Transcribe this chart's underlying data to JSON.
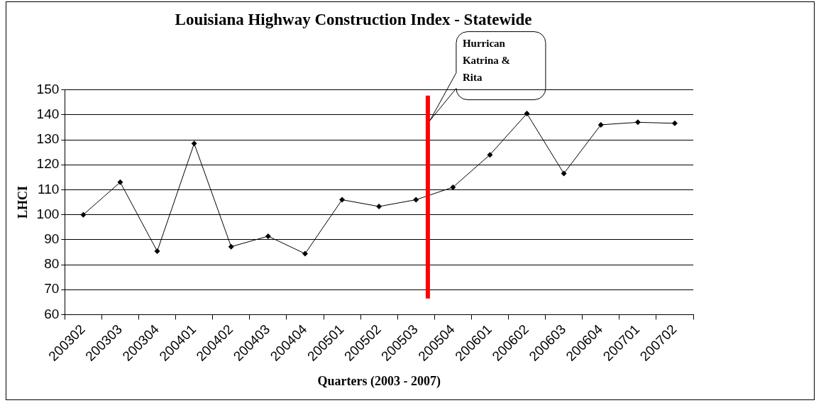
{
  "chart_data": {
    "type": "line",
    "title": "Louisiana Highway Construction Index - Statewide",
    "xlabel": "Quarters (2003 - 2007)",
    "ylabel": "LHCI",
    "categories": [
      "200302",
      "200303",
      "200304",
      "200401",
      "200402",
      "200403",
      "200404",
      "200501",
      "200502",
      "200503",
      "200504",
      "200601",
      "200602",
      "200603",
      "200604",
      "200701",
      "200702"
    ],
    "series": [
      {
        "color": "#000000",
        "values": [
          100,
          113,
          85.4,
          128.5,
          87.2,
          91.4,
          84.4,
          106,
          103.3,
          106,
          111,
          124,
          140.5,
          116.5,
          136,
          137,
          136.6
        ]
      }
    ],
    "ylim": [
      60,
      150
    ],
    "yticks": [
      60,
      70,
      80,
      90,
      100,
      110,
      120,
      130,
      140,
      150
    ],
    "grid": "y",
    "legend": false,
    "marker": "diamond",
    "line_style": "solid",
    "ref_lines": [
      {
        "axis": "x",
        "value": "200503",
        "color": "#ff0000"
      }
    ],
    "annotations": [
      "Hurrican Katrina & Rita"
    ]
  }
}
